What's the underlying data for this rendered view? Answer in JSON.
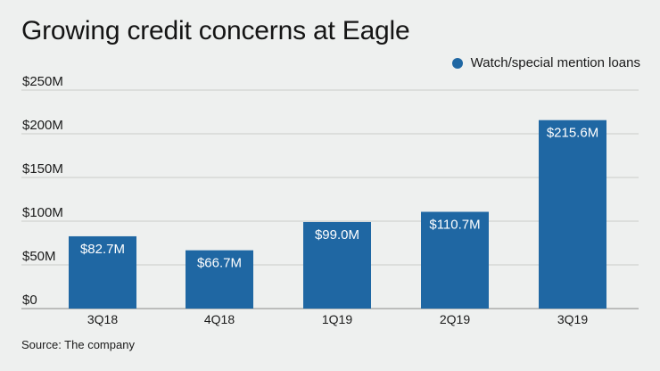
{
  "chart_data": {
    "type": "bar",
    "title": "Growing credit concerns at Eagle",
    "categories": [
      "3Q18",
      "4Q18",
      "1Q19",
      "2Q19",
      "3Q19"
    ],
    "series": [
      {
        "name": "Watch/special mention loans",
        "values": [
          82.7,
          66.7,
          99.0,
          110.7,
          215.6
        ],
        "labels": [
          "$82.7M",
          "$66.7M",
          "$99.0M",
          "$110.7M",
          "$215.6M"
        ],
        "color": "#1f67a3"
      }
    ],
    "ylim": [
      0,
      250
    ],
    "yticks": [
      0,
      50,
      100,
      150,
      200,
      250
    ],
    "ytick_labels": [
      "$0",
      "$50M",
      "$100M",
      "$150M",
      "$200M",
      "$250M"
    ],
    "xlabel": "",
    "ylabel": "",
    "grid": true,
    "legend_position": "top-right"
  },
  "source": "Source: The company"
}
